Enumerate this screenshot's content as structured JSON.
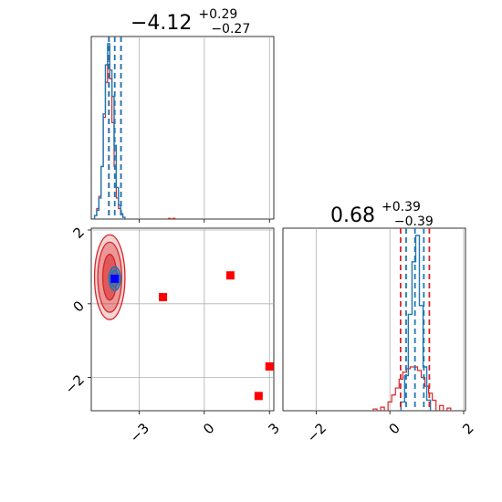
{
  "chart_data": {
    "type": "corner",
    "parameters": [
      {
        "median": "−4.12",
        "upper": "+0.29",
        "lower": "−0.27"
      },
      {
        "median": "0.68",
        "upper": "+0.39",
        "lower": "−0.39"
      }
    ],
    "x_ticks": {
      "param0": [
        "−3",
        "0",
        "3"
      ],
      "param1": [
        "−2",
        "0",
        "2"
      ]
    },
    "y_ticks": {
      "param1": [
        "2",
        "0",
        "−2"
      ]
    },
    "ranges": {
      "param0": [
        -5.2,
        3.2
      ],
      "param1": [
        -2.9,
        2.05
      ]
    },
    "grid": true,
    "colors": {
      "red": "#d62728",
      "blue": "#1f77b4",
      "marker_blue": "#0000ff",
      "marker_red": "#ff0000"
    },
    "histogram_param0": {
      "red_quantile_lines": [
        -4.39,
        -3.83
      ],
      "blue_quantile_lines": [
        -4.39,
        -4.12,
        -3.83
      ],
      "blue_bins": [
        {
          "x": -5.0,
          "v": 0.02
        },
        {
          "x": -4.9,
          "v": 0.05
        },
        {
          "x": -4.8,
          "v": 0.12
        },
        {
          "x": -4.7,
          "v": 0.3
        },
        {
          "x": -4.6,
          "v": 0.6
        },
        {
          "x": -4.5,
          "v": 0.88
        },
        {
          "x": -4.4,
          "v": 1.0
        },
        {
          "x": -4.3,
          "v": 0.85
        },
        {
          "x": -4.2,
          "v": 0.7
        },
        {
          "x": -4.1,
          "v": 0.42
        },
        {
          "x": -4.0,
          "v": 0.18
        },
        {
          "x": -3.9,
          "v": 0.08
        },
        {
          "x": -3.8,
          "v": 0.03
        },
        {
          "x": -3.7,
          "v": 0.01
        }
      ],
      "red_bins": [
        {
          "x": -5.0,
          "v": 0.02
        },
        {
          "x": -4.9,
          "v": 0.06
        },
        {
          "x": -4.8,
          "v": 0.13
        },
        {
          "x": -4.7,
          "v": 0.3
        },
        {
          "x": -4.6,
          "v": 0.58
        },
        {
          "x": -4.5,
          "v": 0.78
        },
        {
          "x": -4.4,
          "v": 0.9
        },
        {
          "x": -4.3,
          "v": 0.8
        },
        {
          "x": -4.2,
          "v": 0.55
        },
        {
          "x": -4.1,
          "v": 0.3
        },
        {
          "x": -4.0,
          "v": 0.12
        },
        {
          "x": -3.9,
          "v": 0.06
        },
        {
          "x": -3.8,
          "v": 0.03
        },
        {
          "x": -3.7,
          "v": 0.01
        },
        {
          "x": -1.6,
          "v": 0.004
        },
        {
          "x": -1.4,
          "v": 0.004
        }
      ]
    },
    "histogram_param1": {
      "red_quantile_lines": [
        0.29,
        1.07
      ],
      "blue_quantile_lines": [
        0.44,
        0.68,
        0.92
      ],
      "blue_bins": [
        {
          "x": 0.35,
          "v": 0.05
        },
        {
          "x": 0.45,
          "v": 0.2
        },
        {
          "x": 0.55,
          "v": 0.55
        },
        {
          "x": 0.65,
          "v": 0.85
        },
        {
          "x": 0.75,
          "v": 1.0
        },
        {
          "x": 0.85,
          "v": 0.6
        },
        {
          "x": 0.95,
          "v": 0.25
        },
        {
          "x": 1.05,
          "v": 0.06
        }
      ],
      "red_bins": [
        {
          "x": -0.4,
          "v": 0.01
        },
        {
          "x": -0.2,
          "v": 0.02
        },
        {
          "x": 0.0,
          "v": 0.05
        },
        {
          "x": 0.1,
          "v": 0.09
        },
        {
          "x": 0.2,
          "v": 0.13
        },
        {
          "x": 0.3,
          "v": 0.18
        },
        {
          "x": 0.4,
          "v": 0.22
        },
        {
          "x": 0.5,
          "v": 0.24
        },
        {
          "x": 0.6,
          "v": 0.25
        },
        {
          "x": 0.7,
          "v": 0.25
        },
        {
          "x": 0.8,
          "v": 0.23
        },
        {
          "x": 0.9,
          "v": 0.19
        },
        {
          "x": 1.0,
          "v": 0.14
        },
        {
          "x": 1.1,
          "v": 0.1
        },
        {
          "x": 1.2,
          "v": 0.06
        },
        {
          "x": 1.4,
          "v": 0.03
        },
        {
          "x": 1.6,
          "v": 0.015
        }
      ]
    },
    "scatter_2d": {
      "red_contours": [
        {
          "cx": -4.35,
          "cy": 0.72,
          "rx": 0.32,
          "ry": 0.62,
          "fill_opacity": 0.55
        },
        {
          "cx": -4.35,
          "cy": 0.72,
          "rx": 0.55,
          "ry": 0.95,
          "fill_opacity": 0.35
        },
        {
          "cx": -4.35,
          "cy": 0.72,
          "rx": 0.7,
          "ry": 1.15,
          "fill_opacity": 0.2
        }
      ],
      "blue_contours": [
        {
          "cx": -4.12,
          "cy": 0.68,
          "rx": 0.18,
          "ry": 0.22
        },
        {
          "cx": -4.12,
          "cy": 0.68,
          "rx": 0.26,
          "ry": 0.32
        }
      ],
      "red_squares": [
        {
          "x": -1.9,
          "y": 0.18
        },
        {
          "x": 1.2,
          "y": 0.77
        },
        {
          "x": 2.5,
          "y": -2.5
        },
        {
          "x": 3.0,
          "y": -1.7
        }
      ],
      "blue_square": {
        "x": -4.12,
        "y": 0.68
      }
    }
  }
}
